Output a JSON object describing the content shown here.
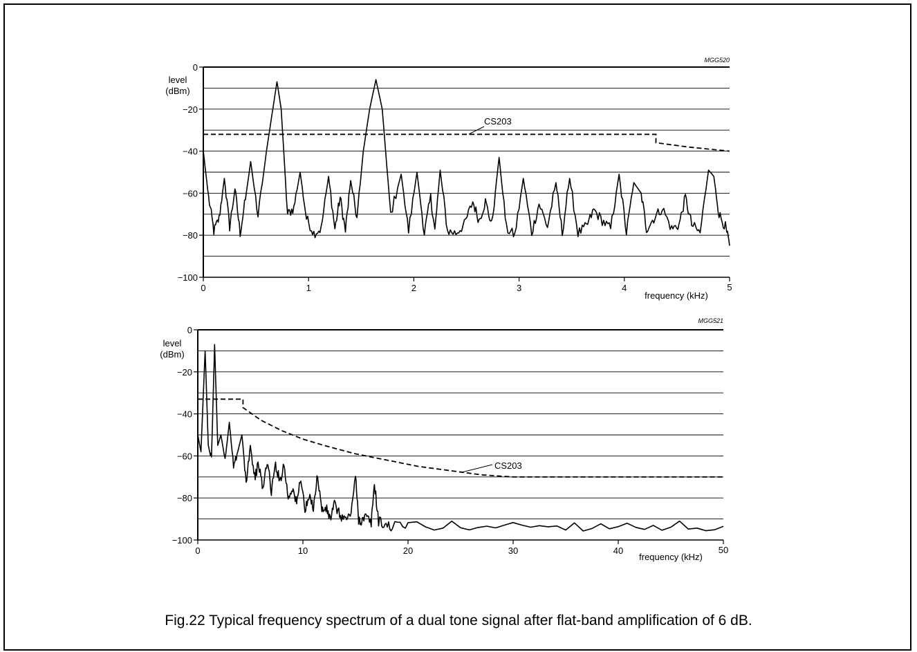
{
  "caption": "Fig.22  Typical frequency spectrum of a dual tone signal after flat-band amplification of 6 dB.",
  "chart_data": [
    {
      "type": "line",
      "id": "MGG520",
      "xlabel": "frequency (kHz)",
      "ylabel": [
        "level",
        "(dBm)"
      ],
      "xlim": [
        0,
        5
      ],
      "ylim": [
        -100,
        0
      ],
      "xticks": [
        0,
        1,
        2,
        3,
        4,
        5
      ],
      "yticks": [
        0,
        -20,
        -40,
        -60,
        -80,
        -100
      ],
      "grid_y_every": 10,
      "series": [
        {
          "name": "",
          "style": "solid",
          "x": [
            0,
            0.05,
            0.1,
            0.15,
            0.2,
            0.25,
            0.3,
            0.35,
            0.4,
            0.45,
            0.52,
            0.6,
            0.66,
            0.7,
            0.74,
            0.8,
            0.86,
            0.92,
            0.98,
            1.05,
            1.12,
            1.19,
            1.25,
            1.3,
            1.35,
            1.4,
            1.46,
            1.52,
            1.58,
            1.64,
            1.7,
            1.78,
            1.88,
            1.95,
            2.03,
            2.1,
            2.16,
            2.2,
            2.25,
            2.32,
            2.4,
            2.48,
            2.56,
            2.62,
            2.68,
            2.74,
            2.81,
            2.88,
            2.96,
            3.04,
            3.12,
            3.19,
            3.27,
            3.35,
            3.41,
            3.48,
            3.56,
            3.64,
            3.71,
            3.79,
            3.87,
            3.95,
            4.02,
            4.09,
            4.16,
            4.21,
            4.28,
            4.36,
            4.45,
            4.52,
            4.58,
            4.64,
            4.72,
            4.8,
            4.85,
            4.9,
            4.96,
            5.0
          ],
          "y": [
            -40,
            -62,
            -78,
            -72,
            -53,
            -76,
            -58,
            -79,
            -63,
            -45,
            -71,
            -40,
            -20,
            -7,
            -20,
            -70,
            -67,
            -50,
            -72,
            -79,
            -77,
            -52,
            -77,
            -62,
            -78,
            -54,
            -72,
            -40,
            -20,
            -6,
            -20,
            -70,
            -51,
            -78,
            -50,
            -79,
            -62,
            -78,
            -49,
            -78,
            -79,
            -75,
            -64,
            -73,
            -64,
            -75,
            -43,
            -77,
            -80,
            -53,
            -79,
            -65,
            -76,
            -55,
            -79,
            -53,
            -79,
            -76,
            -68,
            -73,
            -77,
            -51,
            -79,
            -55,
            -60,
            -77,
            -72,
            -67,
            -77,
            -75,
            -62,
            -75,
            -79,
            -49,
            -52,
            -70,
            -76,
            -85
          ]
        },
        {
          "name": "CS203",
          "style": "dashed",
          "x": [
            0,
            4.3,
            4.3,
            4.6,
            4.8,
            5.0
          ],
          "y": [
            -32,
            -32,
            -36,
            -38,
            -39,
            -40
          ]
        }
      ],
      "annotations": [
        {
          "text": "CS203"
        }
      ]
    },
    {
      "type": "line",
      "id": "MGG521",
      "xlabel": "frequency (kHz)",
      "ylabel": [
        "level",
        "(dBm)"
      ],
      "xlim": [
        0,
        50
      ],
      "ylim": [
        -100,
        0
      ],
      "xticks": [
        0,
        10,
        20,
        30,
        40,
        50
      ],
      "yticks": [
        0,
        -20,
        -40,
        -60,
        -80,
        -100
      ],
      "grid_y_every": 10,
      "series": [
        {
          "name": "",
          "style": "solid",
          "x": [
            0,
            0.3,
            0.7,
            1.0,
            1.3,
            1.6,
            1.9,
            2.2,
            2.6,
            3.0,
            3.4,
            3.8,
            4.2,
            4.6,
            5.0,
            5.4,
            5.8,
            6.2,
            6.6,
            7.0,
            7.4,
            7.8,
            8.2,
            8.6,
            9.0,
            9.4,
            9.8,
            10.2,
            10.6,
            11.0,
            11.4,
            11.8,
            12.2,
            12.6,
            13.0,
            13.5,
            14.0,
            14.5,
            15.0,
            15.3,
            15.6,
            16.0,
            16.5,
            16.8,
            17.2,
            17.8,
            18.5,
            20,
            25,
            30,
            35,
            40,
            45,
            50
          ],
          "y": [
            -50,
            -58,
            -10,
            -55,
            -62,
            -7,
            -55,
            -50,
            -62,
            -44,
            -65,
            -58,
            -50,
            -72,
            -55,
            -70,
            -64,
            -76,
            -62,
            -77,
            -64,
            -72,
            -64,
            -80,
            -75,
            -83,
            -70,
            -86,
            -80,
            -84,
            -69,
            -86,
            -85,
            -90,
            -83,
            -88,
            -90,
            -89,
            -70,
            -90,
            -91,
            -89,
            -92,
            -73,
            -91,
            -93,
            -93.5,
            -93,
            -93.5,
            -93,
            -93.5,
            -93,
            -93.5,
            -93.5
          ]
        },
        {
          "name": "CS203",
          "style": "dashed",
          "x": [
            0,
            4.3,
            4.3,
            6,
            8,
            10,
            12,
            15,
            18,
            21,
            24,
            27,
            30,
            33,
            40,
            50
          ],
          "y": [
            -33,
            -33,
            -37,
            -43,
            -48,
            -52,
            -55,
            -59,
            -62,
            -65,
            -67,
            -69,
            -70,
            -70,
            -70,
            -70
          ]
        }
      ],
      "annotations": [
        {
          "text": "CS203"
        }
      ]
    }
  ]
}
